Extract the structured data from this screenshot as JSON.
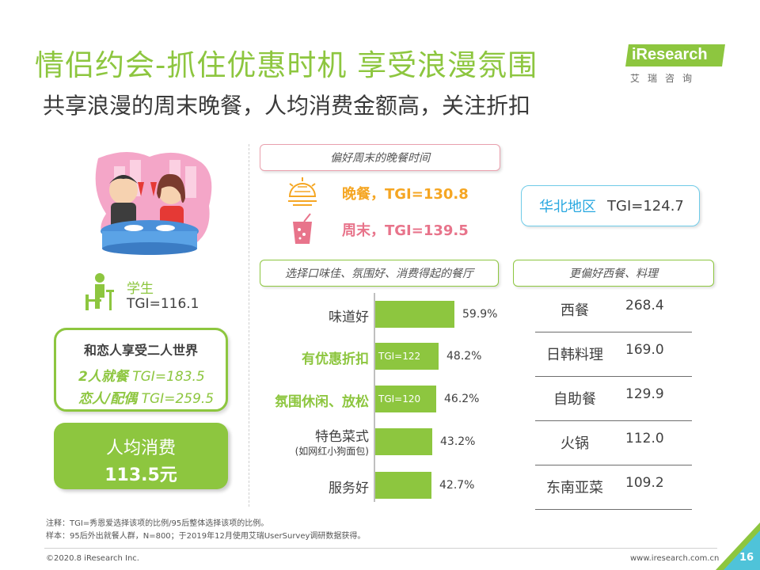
{
  "header": {
    "title": "情侣约会-抓住优惠时机 享受浪漫氛围",
    "subtitle": "共享浪漫的周末晚餐，人均消费金额高，关注折扣"
  },
  "logo": {
    "brand": "iResearch",
    "cn": "艾瑞咨询",
    "color": "#8dc63f"
  },
  "left": {
    "student": {
      "label": "学生",
      "tgi": "TGI=116.1"
    },
    "love_box": {
      "title": "和恋人享受二人世界",
      "rows": [
        {
          "key": "2人就餐",
          "tgi": " TGI=183.5"
        },
        {
          "key": "恋人/配偶",
          "tgi": " TGI=259.5"
        }
      ]
    },
    "spend": {
      "label": "人均消费",
      "value": "113.5元"
    }
  },
  "time_pref": {
    "title": "偏好周末的晚餐时间",
    "items": [
      {
        "text": "晚餐，TGI=130.8",
        "icon": "sunset-icon",
        "color": "#f5a623"
      },
      {
        "text": "周末，TGI=139.5",
        "icon": "drink-icon",
        "color": "#e8748b"
      }
    ]
  },
  "region": {
    "name": "华北地区",
    "tgi": "TGI=124.7"
  },
  "restaurant_choice": {
    "title": "选择口味佳、氛围好、消费得起的餐厅",
    "bars": [
      {
        "label": "味道好",
        "sub": "",
        "value": 59.9,
        "value_text": "59.9%",
        "tgi": "",
        "highlight": false
      },
      {
        "label": "有优惠折扣",
        "sub": "",
        "value": 48.2,
        "value_text": "48.2%",
        "tgi": "TGI=122",
        "highlight": true
      },
      {
        "label": "氛围休闲、放松",
        "sub": "",
        "value": 46.2,
        "value_text": "46.2%",
        "tgi": "TGI=120",
        "highlight": true
      },
      {
        "label": "特色菜式",
        "sub": "(如网红小狗面包)",
        "value": 43.2,
        "value_text": "43.2%",
        "tgi": "",
        "highlight": false
      },
      {
        "label": "服务好",
        "sub": "",
        "value": 42.7,
        "value_text": "42.7%",
        "tgi": "",
        "highlight": false
      }
    ]
  },
  "cuisine": {
    "title": "更偏好西餐、料理",
    "rows": [
      {
        "name": "西餐",
        "value": "268.4"
      },
      {
        "name": "日韩料理",
        "value": "169.0"
      },
      {
        "name": "自助餐",
        "value": "129.9"
      },
      {
        "name": "火锅",
        "value": "112.0"
      },
      {
        "name": "东南亚菜",
        "value": "109.2"
      }
    ]
  },
  "notes": {
    "line1": "注释：TGI=秀恩爱选择该项的比例/95后整体选择该项的比例。",
    "line2": "样本：95后外出就餐人群，N=800；于2019年12月使用艾瑞UserSurvey调研数据获得。"
  },
  "footer": {
    "left": "©2020.8  iResearch Inc.",
    "right": "www.iresearch.com.cn",
    "page": "16"
  }
}
